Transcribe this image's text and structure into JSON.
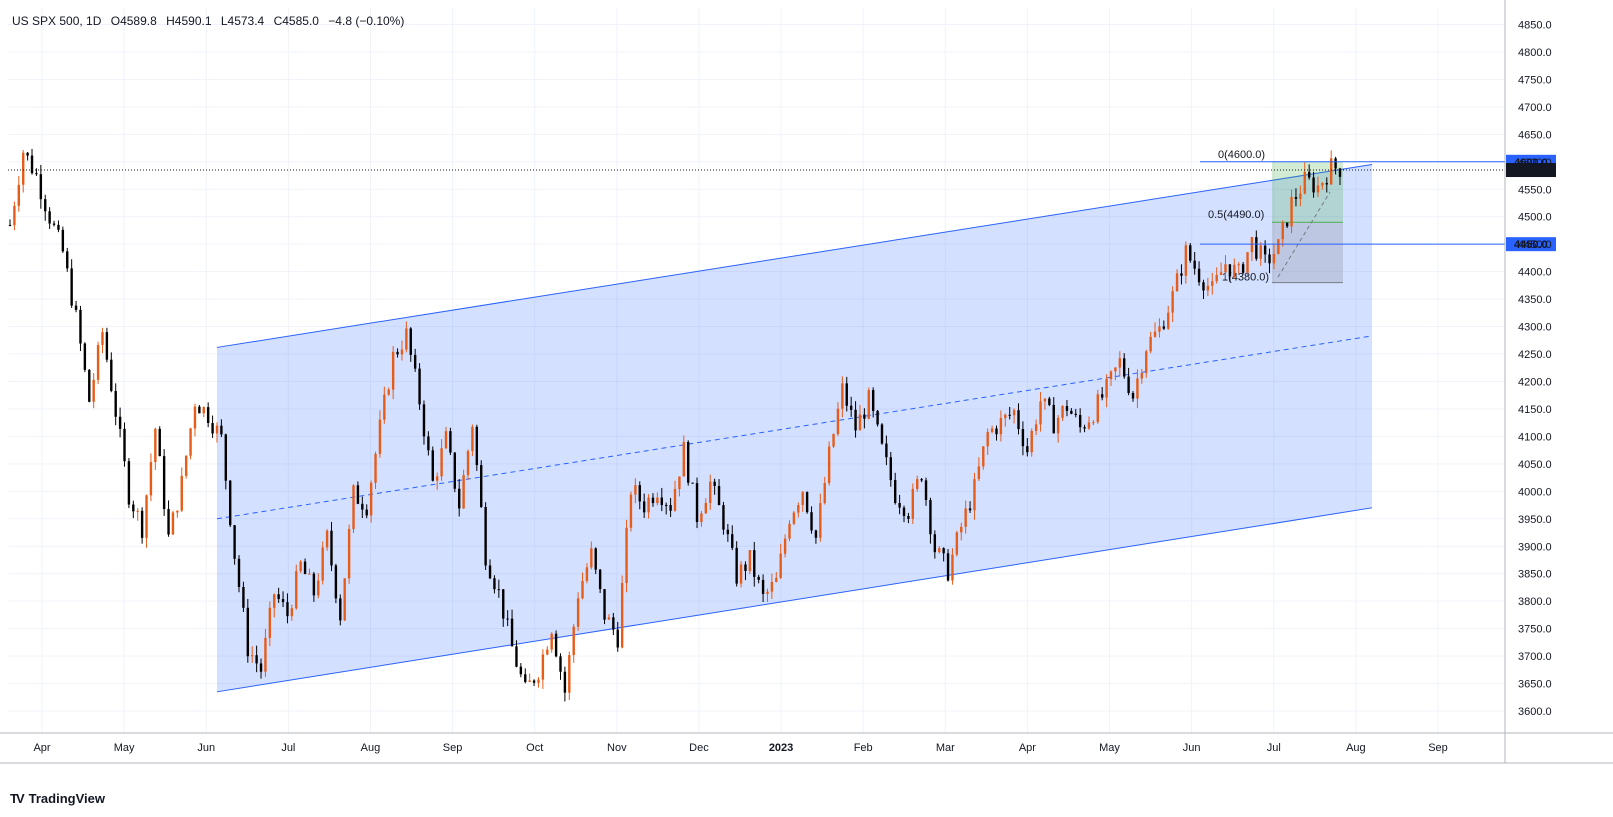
{
  "header": {
    "symbol": "US SPX 500, 1D",
    "open": "O4589.8",
    "high": "H4590.1",
    "low": "L4573.4",
    "close": "C4585.0",
    "change": "−4.8 (−0.10%)"
  },
  "brand": {
    "name": "TradingView",
    "logo": "TV"
  },
  "colors": {
    "up": "#e65c19",
    "down": "#000000",
    "channel": "#2962ff",
    "fib_zone": "#4caf50"
  },
  "chart_data": {
    "type": "candlestick",
    "ylim": [
      3560,
      4880
    ],
    "y_ticks": [
      3600,
      3650,
      3700,
      3750,
      3800,
      3850,
      3900,
      3950,
      4000,
      4050,
      4100,
      4150,
      4200,
      4250,
      4300,
      4350,
      4400,
      4450,
      4500,
      4550,
      4600,
      4650,
      4700,
      4750,
      4800,
      4850
    ],
    "x_labels": [
      "Apr",
      "May",
      "Jun",
      "Jul",
      "Aug",
      "Sep",
      "Oct",
      "Nov",
      "Dec",
      "2023",
      "Feb",
      "Mar",
      "Apr",
      "May",
      "Jun",
      "Jul",
      "Aug",
      "Sep"
    ],
    "price_labels": {
      "high_level": "4600.0",
      "last_price": "4585.0",
      "support_level": "4450.0"
    },
    "fib_labels": {
      "top": "0(4600.0)",
      "mid": "0.5(4490.0)",
      "bottom": "1(4380.0)"
    },
    "channel": {
      "upper_start": 4262,
      "upper_end": 4595,
      "lower_start": 3635,
      "lower_end": 3970,
      "mid_start": 3950,
      "mid_end": 4283
    },
    "path_points": [
      [
        4470,
        4500
      ],
      [
        4610,
        4630
      ],
      [
        4560,
        4590
      ],
      [
        4480,
        4520
      ],
      [
        4420,
        4450
      ],
      [
        4300,
        4330
      ],
      [
        4150,
        4180
      ],
      [
        4280,
        4300
      ],
      [
        4130,
        4160
      ],
      [
        3980,
        4010
      ],
      [
        3920,
        3950
      ],
      [
        4100,
        4130
      ],
      [
        3900,
        3930
      ],
      [
        4000,
        4030
      ],
      [
        4150,
        4180
      ],
      [
        4120,
        4160
      ],
      [
        4080,
        4110
      ],
      [
        3870,
        3900
      ],
      [
        3700,
        3730
      ],
      [
        3660,
        3690
      ],
      [
        3800,
        3830
      ],
      [
        3760,
        3790
      ],
      [
        3850,
        3880
      ],
      [
        3800,
        3830
      ],
      [
        3900,
        3930
      ],
      [
        3760,
        3790
      ],
      [
        3980,
        4010
      ],
      [
        3960,
        3990
      ],
      [
        4100,
        4130
      ],
      [
        4230,
        4260
      ],
      [
        4270,
        4300
      ],
      [
        4150,
        4180
      ],
      [
        4000,
        4030
      ],
      [
        4080,
        4110
      ],
      [
        3960,
        3990
      ],
      [
        4110,
        4140
      ],
      [
        3870,
        3900
      ],
      [
        3800,
        3830
      ],
      [
        3700,
        3730
      ],
      [
        3620,
        3650
      ],
      [
        3660,
        3690
      ],
      [
        3740,
        3770
      ],
      [
        3620,
        3650
      ],
      [
        3800,
        3830
      ],
      [
        3870,
        3900
      ],
      [
        3760,
        3790
      ],
      [
        3720,
        3750
      ],
      [
        3990,
        4020
      ],
      [
        3960,
        3990
      ],
      [
        3990,
        4020
      ],
      [
        3960,
        3990
      ],
      [
        4060,
        4090
      ],
      [
        3940,
        3970
      ],
      [
        4000,
        4030
      ],
      [
        3930,
        3960
      ],
      [
        3830,
        3860
      ],
      [
        3860,
        3890
      ],
      [
        3790,
        3820
      ],
      [
        3820,
        3850
      ],
      [
        3940,
        3970
      ],
      [
        3990,
        4020
      ],
      [
        3900,
        3930
      ],
      [
        4050,
        4080
      ],
      [
        4170,
        4200
      ],
      [
        4100,
        4130
      ],
      [
        4150,
        4180
      ],
      [
        4060,
        4090
      ],
      [
        3980,
        4010
      ],
      [
        3950,
        3980
      ],
      [
        4020,
        4050
      ],
      [
        3880,
        3910
      ],
      [
        3840,
        3870
      ],
      [
        3920,
        3950
      ],
      [
        3990,
        4020
      ],
      [
        4090,
        4120
      ],
      [
        4110,
        4140
      ],
      [
        4130,
        4160
      ],
      [
        4060,
        4090
      ],
      [
        4150,
        4180
      ],
      [
        4110,
        4140
      ],
      [
        4140,
        4170
      ],
      [
        4100,
        4130
      ],
      [
        4130,
        4160
      ],
      [
        4170,
        4200
      ],
      [
        4220,
        4250
      ],
      [
        4160,
        4190
      ],
      [
        4250,
        4280
      ],
      [
        4280,
        4310
      ],
      [
        4340,
        4370
      ],
      [
        4420,
        4450
      ],
      [
        4380,
        4410
      ],
      [
        4350,
        4380
      ],
      [
        4400,
        4430
      ],
      [
        4380,
        4410
      ],
      [
        4440,
        4470
      ],
      [
        4400,
        4430
      ],
      [
        4430,
        4460
      ],
      [
        4510,
        4540
      ],
      [
        4550,
        4580
      ],
      [
        4540,
        4570
      ],
      [
        4580,
        4600
      ],
      [
        4585,
        4590
      ]
    ]
  }
}
